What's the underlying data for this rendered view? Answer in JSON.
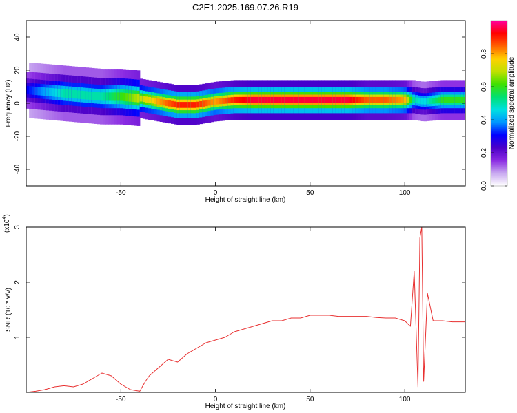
{
  "title": "C2E1.2025.169.07.26.R19",
  "chart_data": [
    {
      "type": "heatmap",
      "title": "C2E1.2025.169.07.26.R19",
      "xlabel": "Height of straight line (km)",
      "ylabel": "Frequency (Hz)",
      "xlim": [
        -100,
        132
      ],
      "ylim": [
        -50,
        50
      ],
      "x_ticks": [
        -50,
        0,
        50,
        100
      ],
      "y_ticks": [
        -40,
        -20,
        0,
        20,
        40
      ],
      "colorbar": {
        "label": "Normalized spectral amplitude",
        "range": [
          0,
          1
        ],
        "ticks": [
          "0.0",
          "0.2",
          "0.4",
          "0.6",
          "0.8"
        ],
        "colors": [
          "#ffffff",
          "#c8a8f0",
          "#8a2be2",
          "#4b00c8",
          "#0000ff",
          "#0096ff",
          "#00e0e0",
          "#00e070",
          "#40e000",
          "#c0e000",
          "#ffd000",
          "#ff6000",
          "#ff0000",
          "#ff00a0"
        ]
      },
      "ridge": {
        "x": [
          -100,
          -90,
          -80,
          -70,
          -60,
          -50,
          -40,
          -30,
          -20,
          -10,
          0,
          10,
          20,
          30,
          40,
          50,
          60,
          70,
          80,
          90,
          100,
          105,
          110,
          120,
          132
        ],
        "freq": [
          8,
          7,
          6,
          5,
          4,
          4,
          3,
          1,
          -1,
          -1,
          1,
          2,
          2,
          2,
          2,
          2,
          2,
          2,
          2,
          2,
          2,
          2,
          1,
          2,
          2
        ],
        "peak_amplitude": [
          0.3,
          0.4,
          0.5,
          0.5,
          0.5,
          0.6,
          0.7,
          0.8,
          0.9,
          0.9,
          0.8,
          0.9,
          0.95,
          0.95,
          0.95,
          0.95,
          0.95,
          0.95,
          0.85,
          0.85,
          0.8,
          0.5,
          0.45,
          0.6,
          0.6
        ]
      }
    },
    {
      "type": "line",
      "xlabel": "Height of straight line (km)",
      "ylabel": "SNR (10 * v/v)",
      "y_multiplier": "(x10",
      "y_multiplier_exp": "4",
      "xlim": [
        -100,
        132
      ],
      "ylim": [
        0,
        3
      ],
      "x_ticks": [
        -50,
        0,
        50,
        100
      ],
      "y_ticks": [
        1,
        2,
        3
      ],
      "color": "#e83030",
      "series": [
        {
          "x": [
            -100,
            -95,
            -90,
            -85,
            -80,
            -75,
            -70,
            -65,
            -60,
            -55,
            -50,
            -45,
            -40,
            -37,
            -35,
            -30,
            -25,
            -20,
            -15,
            -10,
            -5,
            0,
            5,
            10,
            15,
            20,
            25,
            30,
            35,
            40,
            45,
            50,
            55,
            60,
            65,
            70,
            75,
            80,
            85,
            90,
            95,
            100,
            103,
            105,
            107,
            108,
            109,
            110,
            112,
            115,
            120,
            125,
            132
          ],
          "y": [
            0,
            0.02,
            0.05,
            0.1,
            0.12,
            0.1,
            0.15,
            0.25,
            0.35,
            0.3,
            0.15,
            0.05,
            0.02,
            0.2,
            0.3,
            0.45,
            0.6,
            0.55,
            0.7,
            0.8,
            0.9,
            0.95,
            1.0,
            1.1,
            1.15,
            1.2,
            1.25,
            1.3,
            1.3,
            1.35,
            1.35,
            1.4,
            1.4,
            1.4,
            1.38,
            1.38,
            1.38,
            1.38,
            1.36,
            1.35,
            1.35,
            1.3,
            1.2,
            2.2,
            0.1,
            2.8,
            3.0,
            0.2,
            1.8,
            1.3,
            1.3,
            1.28,
            1.28
          ]
        }
      ]
    }
  ]
}
